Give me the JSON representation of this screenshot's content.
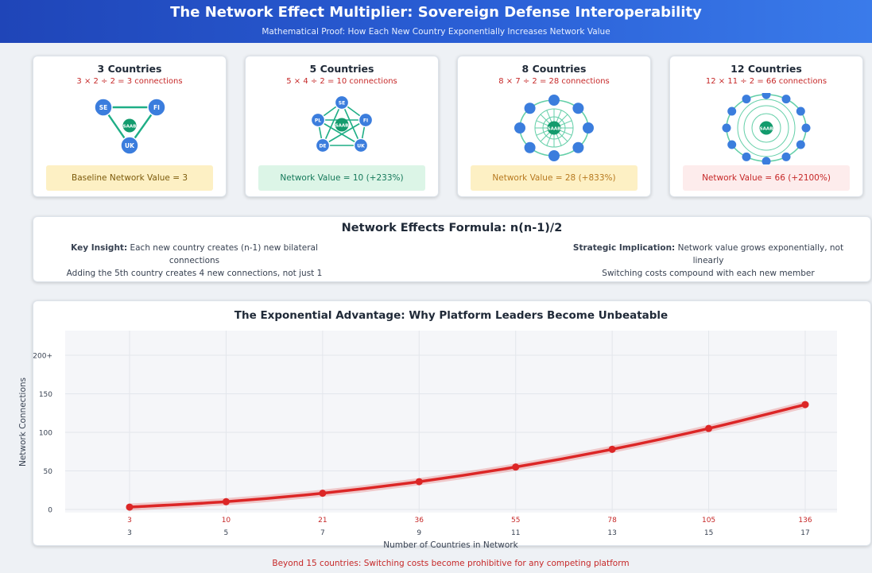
{
  "header": {
    "title": "The Network Effect Multiplier: Sovereign Defense Interoperability",
    "subtitle": "Mathematical Proof: How Each New Country Exponentially Increases Network Value"
  },
  "network_cards": [
    {
      "title": "3 Countries",
      "formula": "3 × 2 ÷ 2 = 3 connections",
      "value_label": "Baseline Network Value = 3",
      "center_label": "SAAB",
      "node_labels": [
        "SE",
        "FI",
        "UK"
      ]
    },
    {
      "title": "5 Countries",
      "formula": "5 × 4 ÷ 2 = 10 connections",
      "value_label": "Network Value = 10 (+233%)",
      "center_label": "SAAB",
      "node_labels": [
        "SE",
        "FI",
        "UK",
        "DE",
        "PL"
      ]
    },
    {
      "title": "8 Countries",
      "formula": "8 × 7 ÷ 2 = 28 connections",
      "value_label": "Network Value = 28 (+833%)",
      "center_label": "SAAB"
    },
    {
      "title": "12 Countries",
      "formula": "12 × 11 ÷ 2 = 66 connections",
      "value_label": "Network Value = 66 (+2100%)",
      "center_label": "SAAB"
    }
  ],
  "formula_panel": {
    "title": "Network Effects Formula: n(n-1)/2",
    "left_bold": "Key Insight:",
    "left_text": " Each new country creates (n-1) new bilateral connections",
    "left_line2": "Adding the 5th country creates 4 new connections, not just 1",
    "right_bold": "Strategic Implication:",
    "right_text": " Network value grows exponentially, not linearly",
    "right_line2": "Switching costs compound with each new member"
  },
  "chart_data": {
    "type": "line",
    "title": "The Exponential Advantage: Why Platform Leaders Become Unbeatable",
    "xlabel": "Number of Countries in Network",
    "ylabel": "Network Connections",
    "x": [
      3,
      5,
      7,
      9,
      11,
      13,
      15,
      17
    ],
    "values": [
      3,
      10,
      21,
      36,
      55,
      78,
      105,
      136
    ],
    "y_ticks": [
      "0",
      "50",
      "100",
      "150",
      "200+"
    ],
    "ylim": [
      0,
      200
    ],
    "grid": true,
    "line_color": "#dc2626",
    "data_label_color": "#c62828"
  },
  "footer": "Beyond 15 countries: Switching costs become prohibitive for any competing platform"
}
